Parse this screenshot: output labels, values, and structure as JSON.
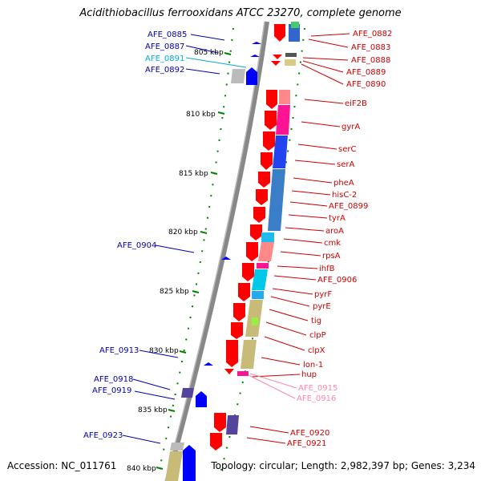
{
  "title": "Acidithiobacillus ferrooxidans ATCC 23270, complete genome",
  "footer": {
    "accession": "Accession: NC_011761",
    "topology": "Topology: circular; Length: 2,982,397 bp; Genes: 3,234"
  },
  "colors": {
    "forward_orf": "#ff0000",
    "reverse_orf": "#0000ff",
    "forward_label": "#cc0000",
    "reverse_label": "#0000aa",
    "rna_label": "#00aacc",
    "pink_label": "#ff88aa",
    "tick": "#008000",
    "backbone": "#888888"
  },
  "scale": [
    {
      "text": "805 kbp"
    },
    {
      "text": "810 kbp"
    },
    {
      "text": "815 kbp"
    },
    {
      "text": "820 kbp"
    },
    {
      "text": "825 kbp"
    },
    {
      "text": "830 kbp"
    },
    {
      "text": "835 kbp"
    },
    {
      "text": "840 kbp"
    }
  ],
  "left_labels": [
    {
      "text": "AFE_0885",
      "type": "reverse"
    },
    {
      "text": "AFE_0887",
      "type": "reverse"
    },
    {
      "text": "AFE_0891",
      "type": "rna"
    },
    {
      "text": "AFE_0892",
      "type": "reverse"
    },
    {
      "text": "AFE_0904",
      "type": "reverse"
    },
    {
      "text": "AFE_0913",
      "type": "reverse"
    },
    {
      "text": "AFE_0918",
      "type": "reverse"
    },
    {
      "text": "AFE_0919",
      "type": "reverse"
    },
    {
      "text": "AFE_0923",
      "type": "reverse"
    }
  ],
  "right_labels": [
    {
      "text": "AFE_0882",
      "type": "forward"
    },
    {
      "text": "AFE_0883",
      "type": "forward"
    },
    {
      "text": "AFE_0888",
      "type": "forward"
    },
    {
      "text": "AFE_0889",
      "type": "forward"
    },
    {
      "text": "AFE_0890",
      "type": "forward"
    },
    {
      "text": "eiF2B",
      "type": "forward"
    },
    {
      "text": "gyrA",
      "type": "forward"
    },
    {
      "text": "serC",
      "type": "forward"
    },
    {
      "text": "serA",
      "type": "forward"
    },
    {
      "text": "pheA",
      "type": "forward"
    },
    {
      "text": "hisC-2",
      "type": "forward"
    },
    {
      "text": "AFE_0899",
      "type": "forward"
    },
    {
      "text": "tyrA",
      "type": "forward"
    },
    {
      "text": "aroA",
      "type": "forward"
    },
    {
      "text": "cmk",
      "type": "forward"
    },
    {
      "text": "rpsA",
      "type": "forward"
    },
    {
      "text": "ihfB",
      "type": "forward"
    },
    {
      "text": "AFE_0906",
      "type": "forward"
    },
    {
      "text": "pyrF",
      "type": "forward"
    },
    {
      "text": "pyrE",
      "type": "forward"
    },
    {
      "text": "tig",
      "type": "forward"
    },
    {
      "text": "clpP",
      "type": "forward"
    },
    {
      "text": "clpX",
      "type": "forward"
    },
    {
      "text": "lon-1",
      "type": "forward"
    },
    {
      "text": "hup",
      "type": "forward"
    },
    {
      "text": "AFE_0915",
      "type": "pink"
    },
    {
      "text": "AFE_0916",
      "type": "pink"
    },
    {
      "text": "AFE_0920",
      "type": "forward"
    },
    {
      "text": "AFE_0921",
      "type": "forward"
    }
  ]
}
